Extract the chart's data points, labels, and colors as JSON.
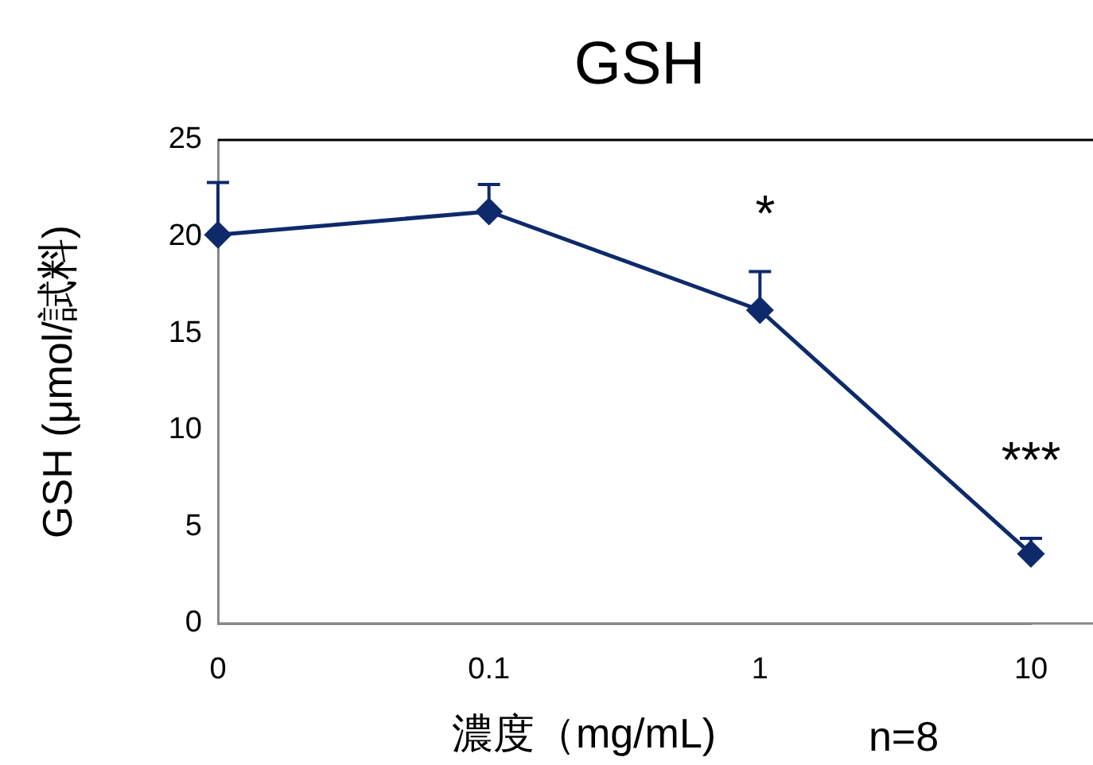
{
  "chart_data": {
    "type": "line",
    "title": "GSH",
    "xlabel": "濃度（mg/mL)",
    "ylabel": "GSH (μmol/試料)",
    "categories": [
      "0",
      "0.1",
      "1",
      "10"
    ],
    "series": [
      {
        "color": "#0f2a6b",
        "values": [
          20.1,
          21.3,
          16.2,
          3.6
        ],
        "errors": [
          [
            20.1,
            22.8
          ],
          [
            21.3,
            22.7
          ],
          [
            16.2,
            18.2
          ],
          [
            3.6,
            4.4
          ]
        ]
      }
    ],
    "ylim": [
      0,
      25
    ],
    "yticks": [
      0,
      5,
      10,
      15,
      20,
      25
    ],
    "grid": false,
    "legend": false,
    "marker": "diamond",
    "line_style": "solid",
    "annotations": [
      "*",
      "***",
      "n=8"
    ]
  }
}
